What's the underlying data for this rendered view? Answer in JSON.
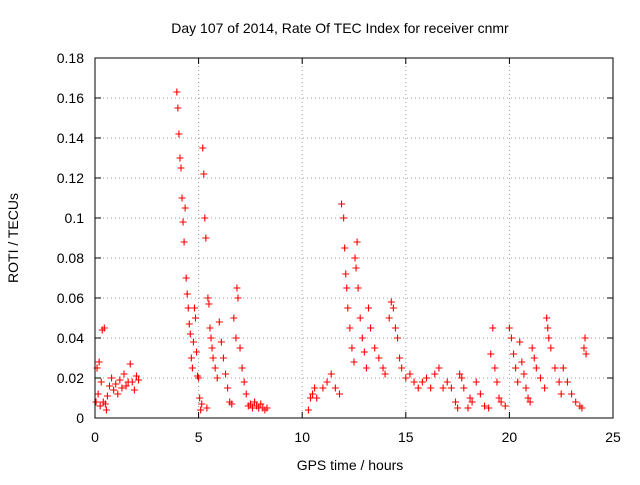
{
  "chart_data": {
    "type": "scatter",
    "title": "Day 107 of 2014, Rate Of TEC Index for receiver cnmr",
    "xlabel": "GPS time / hours",
    "ylabel": "ROTI / TECUs",
    "xlim": [
      0,
      25
    ],
    "ylim": [
      0,
      0.18
    ],
    "x_ticks": [
      0,
      5,
      10,
      15,
      20,
      25
    ],
    "y_ticks": [
      0,
      0.02,
      0.04,
      0.06,
      0.08,
      0.1,
      0.12,
      0.14,
      0.16,
      0.18
    ],
    "x_tick_labels": [
      "0",
      "5",
      "10",
      "15",
      "20",
      "25"
    ],
    "y_tick_labels": [
      "0",
      "0.02",
      "0.04",
      "0.06",
      "0.08",
      "0.1",
      "0.12",
      "0.14",
      "0.16",
      "0.18"
    ],
    "grid": true,
    "marker": "+",
    "marker_color": "#ff0000",
    "series": [
      {
        "name": "",
        "points": [
          [
            0.05,
            0.008
          ],
          [
            0.1,
            0.025
          ],
          [
            0.15,
            0.012
          ],
          [
            0.2,
            0.028
          ],
          [
            0.25,
            0.006
          ],
          [
            0.3,
            0.018
          ],
          [
            0.35,
            0.044
          ],
          [
            0.4,
            0.008
          ],
          [
            0.45,
            0.045
          ],
          [
            0.5,
            0.007
          ],
          [
            0.55,
            0.004
          ],
          [
            0.6,
            0.011
          ],
          [
            0.7,
            0.016
          ],
          [
            0.8,
            0.02
          ],
          [
            0.9,
            0.014
          ],
          [
            1.0,
            0.017
          ],
          [
            1.1,
            0.012
          ],
          [
            1.2,
            0.019
          ],
          [
            1.3,
            0.015
          ],
          [
            1.4,
            0.022
          ],
          [
            1.5,
            0.016
          ],
          [
            1.6,
            0.018
          ],
          [
            1.7,
            0.027
          ],
          [
            1.8,
            0.018
          ],
          [
            1.9,
            0.014
          ],
          [
            2.0,
            0.021
          ],
          [
            2.1,
            0.019
          ],
          [
            3.95,
            0.163
          ],
          [
            4.0,
            0.155
          ],
          [
            4.05,
            0.142
          ],
          [
            4.1,
            0.13
          ],
          [
            4.15,
            0.125
          ],
          [
            4.2,
            0.11
          ],
          [
            4.25,
            0.098
          ],
          [
            4.3,
            0.088
          ],
          [
            4.35,
            0.105
          ],
          [
            4.4,
            0.07
          ],
          [
            4.45,
            0.062
          ],
          [
            4.5,
            0.055
          ],
          [
            4.55,
            0.047
          ],
          [
            4.6,
            0.042
          ],
          [
            4.65,
            0.03
          ],
          [
            4.7,
            0.025
          ],
          [
            4.75,
            0.038
          ],
          [
            4.8,
            0.055
          ],
          [
            4.85,
            0.05
          ],
          [
            4.9,
            0.033
          ],
          [
            4.95,
            0.021
          ],
          [
            5.0,
            0.02
          ],
          [
            5.05,
            0.01
          ],
          [
            5.1,
            0.004
          ],
          [
            5.15,
            0.007
          ],
          [
            5.2,
            0.135
          ],
          [
            5.25,
            0.122
          ],
          [
            5.3,
            0.1
          ],
          [
            5.35,
            0.09
          ],
          [
            5.4,
            0.005
          ],
          [
            5.45,
            0.06
          ],
          [
            5.5,
            0.057
          ],
          [
            5.55,
            0.045
          ],
          [
            5.6,
            0.04
          ],
          [
            5.65,
            0.035
          ],
          [
            5.7,
            0.03
          ],
          [
            5.8,
            0.025
          ],
          [
            5.9,
            0.02
          ],
          [
            6.0,
            0.048
          ],
          [
            6.1,
            0.038
          ],
          [
            6.2,
            0.03
          ],
          [
            6.3,
            0.022
          ],
          [
            6.4,
            0.015
          ],
          [
            6.5,
            0.008
          ],
          [
            6.6,
            0.007
          ],
          [
            6.7,
            0.05
          ],
          [
            6.8,
            0.04
          ],
          [
            6.85,
            0.065
          ],
          [
            6.9,
            0.06
          ],
          [
            7.0,
            0.035
          ],
          [
            7.1,
            0.025
          ],
          [
            7.2,
            0.018
          ],
          [
            7.3,
            0.012
          ],
          [
            7.4,
            0.006
          ],
          [
            7.5,
            0.007
          ],
          [
            7.6,
            0.005
          ],
          [
            7.7,
            0.008
          ],
          [
            7.8,
            0.006
          ],
          [
            7.9,
            0.005
          ],
          [
            8.0,
            0.007
          ],
          [
            8.1,
            0.005
          ],
          [
            8.2,
            0.004
          ],
          [
            8.3,
            0.005
          ],
          [
            10.3,
            0.004
          ],
          [
            10.4,
            0.01
          ],
          [
            10.5,
            0.012
          ],
          [
            10.6,
            0.015
          ],
          [
            10.7,
            0.01
          ],
          [
            11.0,
            0.015
          ],
          [
            11.2,
            0.018
          ],
          [
            11.4,
            0.022
          ],
          [
            11.6,
            0.015
          ],
          [
            11.8,
            0.012
          ],
          [
            11.9,
            0.107
          ],
          [
            12.0,
            0.1
          ],
          [
            12.05,
            0.085
          ],
          [
            12.1,
            0.072
          ],
          [
            12.15,
            0.065
          ],
          [
            12.2,
            0.055
          ],
          [
            12.3,
            0.045
          ],
          [
            12.4,
            0.035
          ],
          [
            12.5,
            0.028
          ],
          [
            12.55,
            0.08
          ],
          [
            12.6,
            0.075
          ],
          [
            12.65,
            0.088
          ],
          [
            12.7,
            0.065
          ],
          [
            12.8,
            0.05
          ],
          [
            12.9,
            0.04
          ],
          [
            13.0,
            0.033
          ],
          [
            13.1,
            0.025
          ],
          [
            13.2,
            0.055
          ],
          [
            13.3,
            0.045
          ],
          [
            13.5,
            0.035
          ],
          [
            13.7,
            0.03
          ],
          [
            13.9,
            0.025
          ],
          [
            14.0,
            0.022
          ],
          [
            14.2,
            0.05
          ],
          [
            14.3,
            0.058
          ],
          [
            14.4,
            0.055
          ],
          [
            14.5,
            0.045
          ],
          [
            14.6,
            0.04
          ],
          [
            14.7,
            0.03
          ],
          [
            14.8,
            0.025
          ],
          [
            15.0,
            0.02
          ],
          [
            15.2,
            0.022
          ],
          [
            15.4,
            0.018
          ],
          [
            15.6,
            0.015
          ],
          [
            15.8,
            0.018
          ],
          [
            16.0,
            0.02
          ],
          [
            16.2,
            0.015
          ],
          [
            16.4,
            0.022
          ],
          [
            16.6,
            0.025
          ],
          [
            16.8,
            0.015
          ],
          [
            17.0,
            0.018
          ],
          [
            17.2,
            0.015
          ],
          [
            17.4,
            0.008
          ],
          [
            17.5,
            0.005
          ],
          [
            17.6,
            0.022
          ],
          [
            17.7,
            0.02
          ],
          [
            17.8,
            0.015
          ],
          [
            18.0,
            0.005
          ],
          [
            18.1,
            0.01
          ],
          [
            18.2,
            0.008
          ],
          [
            18.4,
            0.018
          ],
          [
            18.6,
            0.012
          ],
          [
            18.8,
            0.006
          ],
          [
            19.0,
            0.005
          ],
          [
            19.1,
            0.032
          ],
          [
            19.2,
            0.045
          ],
          [
            19.3,
            0.025
          ],
          [
            19.4,
            0.018
          ],
          [
            19.5,
            0.01
          ],
          [
            19.6,
            0.008
          ],
          [
            19.8,
            0.006
          ],
          [
            20.0,
            0.045
          ],
          [
            20.1,
            0.04
          ],
          [
            20.2,
            0.032
          ],
          [
            20.3,
            0.025
          ],
          [
            20.4,
            0.018
          ],
          [
            20.5,
            0.038
          ],
          [
            20.6,
            0.028
          ],
          [
            20.7,
            0.022
          ],
          [
            20.8,
            0.015
          ],
          [
            20.9,
            0.01
          ],
          [
            21.0,
            0.008
          ],
          [
            21.1,
            0.035
          ],
          [
            21.2,
            0.03
          ],
          [
            21.3,
            0.025
          ],
          [
            21.5,
            0.02
          ],
          [
            21.7,
            0.015
          ],
          [
            21.8,
            0.05
          ],
          [
            21.85,
            0.045
          ],
          [
            21.9,
            0.04
          ],
          [
            22.0,
            0.035
          ],
          [
            22.2,
            0.025
          ],
          [
            22.4,
            0.018
          ],
          [
            22.5,
            0.012
          ],
          [
            22.6,
            0.025
          ],
          [
            22.8,
            0.018
          ],
          [
            23.0,
            0.012
          ],
          [
            23.2,
            0.008
          ],
          [
            23.4,
            0.006
          ],
          [
            23.5,
            0.005
          ],
          [
            23.6,
            0.035
          ],
          [
            23.65,
            0.04
          ],
          [
            23.7,
            0.032
          ]
        ]
      }
    ]
  }
}
